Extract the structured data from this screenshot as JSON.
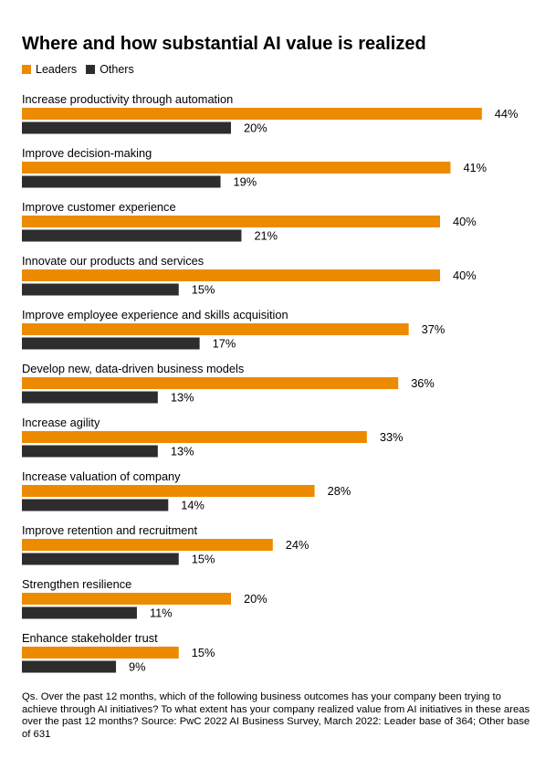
{
  "chart_data": {
    "type": "bar",
    "orientation": "horizontal",
    "title": "Where and how substantial AI value is realized",
    "legend_position": "top-left",
    "grid": false,
    "xlim": [
      0,
      50
    ],
    "categories": [
      "Increase productivity through automation",
      "Improve decision-making",
      "Improve customer experience",
      "Innovate our products and services",
      "Improve employee experience and skills acquisition",
      "Develop new, data-driven business models",
      "Increase agility",
      "Increase valuation of company",
      "Improve retention and recruitment",
      "Strengthen resilience",
      "Enhance stakeholder trust"
    ],
    "series": [
      {
        "name": "Leaders",
        "color": "#ed8b00",
        "values": [
          44,
          41,
          40,
          40,
          37,
          36,
          33,
          28,
          24,
          20,
          15
        ],
        "labels": [
          "44%",
          "41%",
          "40%",
          "40%",
          "37%",
          "36%",
          "33%",
          "28%",
          "24%",
          "20%",
          "15%"
        ]
      },
      {
        "name": "Others",
        "color": "#2d2d2d",
        "values": [
          20,
          19,
          21,
          15,
          17,
          13,
          13,
          14,
          15,
          11,
          9
        ],
        "labels": [
          "20%",
          "19%",
          "21%",
          "15%",
          "17%",
          "13%",
          "13%",
          "14%",
          "15%",
          "11%",
          "9%"
        ]
      }
    ]
  },
  "footnote": "Qs. Over the past 12 months, which of the following business outcomes has your company been trying to achieve through AI initiatives? To what extent has your company realized value from AI initiatives in these areas over the past 12 months? Source: PwC 2022 AI Business Survey, March 2022: Leader base of 364; Other base of 631"
}
